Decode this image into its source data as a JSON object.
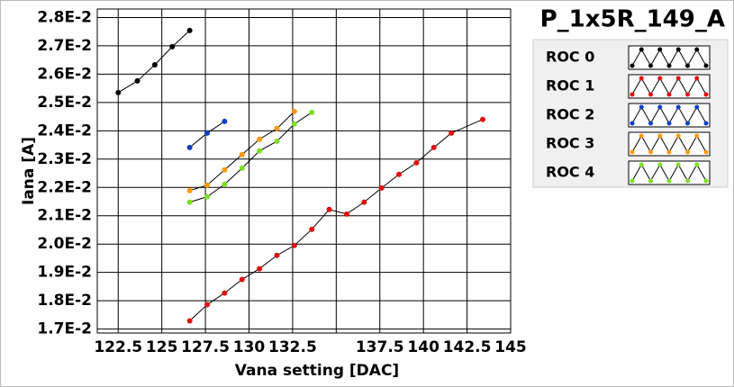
{
  "chart_data": {
    "type": "line",
    "title": "P_1x5R_149_A",
    "xlabel": "Vana setting [DAC]",
    "ylabel": "Iana [A]",
    "xlim": [
      121.3,
      145
    ],
    "ylim": [
      0.01686,
      0.0283
    ],
    "xticks": [
      122.5,
      125,
      127.5,
      130,
      132.5,
      {
        "value": 135,
        "label": null
      },
      137.5,
      140,
      142.5,
      145
    ],
    "yticks": [
      {
        "value": 0.017,
        "label": "1.7E-2"
      },
      {
        "value": 0.018,
        "label": "1.8E-2"
      },
      {
        "value": 0.019,
        "label": "1.9E-2"
      },
      {
        "value": 0.02,
        "label": "2.0E-2"
      },
      {
        "value": 0.021,
        "label": "2.1E-2"
      },
      {
        "value": 0.022,
        "label": "2.2E-2"
      },
      {
        "value": 0.023,
        "label": "2.3E-2"
      },
      {
        "value": 0.024,
        "label": "2.4E-2"
      },
      {
        "value": 0.025,
        "label": "2.5E-2"
      },
      {
        "value": 0.026,
        "label": "2.6E-2"
      },
      {
        "value": 0.027,
        "label": "2.7E-2"
      },
      {
        "value": 0.028,
        "label": "2.8E-2"
      }
    ],
    "grid": true,
    "series": [
      {
        "name": "ROC 0",
        "color": "#000000",
        "x": [
          122.5,
          123.6,
          124.6,
          125.6,
          126.6
        ],
        "values": [
          0.02535,
          0.02576,
          0.02633,
          0.02697,
          0.02754
        ]
      },
      {
        "name": "ROC 1",
        "color": "#e01010",
        "x": [
          126.6,
          127.6,
          128.6,
          129.6,
          130.6,
          131.6,
          132.6,
          133.6,
          134.6,
          135.6,
          136.6,
          137.6,
          138.6,
          139.6,
          140.6,
          141.6,
          143.4
        ],
        "values": [
          0.01729,
          0.01786,
          0.01827,
          0.01875,
          0.01913,
          0.0196,
          0.01995,
          0.02052,
          0.02122,
          0.02106,
          0.02148,
          0.02198,
          0.02246,
          0.02287,
          0.02341,
          0.02392,
          0.0244
        ]
      },
      {
        "name": "ROC 2",
        "color": "#0a3fc8",
        "x": [
          126.6,
          127.6,
          128.6
        ],
        "values": [
          0.02341,
          0.02392,
          0.02433
        ]
      },
      {
        "name": "ROC 3",
        "color": "#ff9a00",
        "x": [
          126.6,
          127.6,
          128.6,
          129.6,
          130.6,
          131.6,
          132.6
        ],
        "values": [
          0.02189,
          0.02208,
          0.02262,
          0.02316,
          0.0237,
          0.02408,
          0.02468
        ]
      },
      {
        "name": "ROC 4",
        "color": "#7ce020",
        "x": [
          126.6,
          127.6,
          128.6,
          129.6,
          130.6,
          131.6,
          132.6,
          133.6
        ],
        "values": [
          0.02148,
          0.02167,
          0.02211,
          0.02268,
          0.02329,
          0.02363,
          0.02424,
          0.02465
        ]
      }
    ]
  }
}
